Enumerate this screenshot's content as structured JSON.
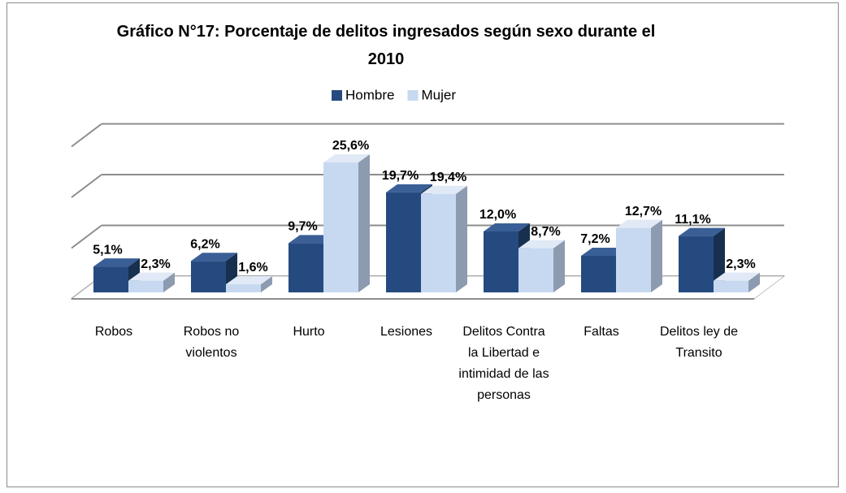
{
  "chart_data": {
    "type": "bar3d",
    "title": "Gráfico N°17: Porcentaje de delitos ingresados según sexo durante el 2010",
    "categories": [
      "Robos",
      "Robos no violentos",
      "Hurto",
      "Lesiones",
      "Delitos Contra la Libertad e intimidad de las personas",
      "Faltas",
      "Delitos ley de Transito"
    ],
    "series": [
      {
        "name": "Hombre",
        "color": "#254a7f",
        "values": [
          5.1,
          6.2,
          9.7,
          19.7,
          12.0,
          7.2,
          11.1
        ],
        "value_labels": [
          "5,1%",
          "6,2%",
          "9,7%",
          "19,7%",
          "12,0%",
          "7,2%",
          "11,1%"
        ]
      },
      {
        "name": "Mujer",
        "color": "#c6d9f1",
        "values": [
          2.3,
          1.6,
          25.6,
          19.4,
          8.7,
          12.7,
          2.3
        ],
        "value_labels": [
          "2,3%",
          "1,6%",
          "25,6%",
          "19,4%",
          "8,7%",
          "12,7%",
          "2,3%"
        ]
      }
    ],
    "ylim": [
      0,
      30
    ],
    "yticks": [
      0,
      10,
      20,
      30
    ],
    "grid": true,
    "legend": "top"
  }
}
